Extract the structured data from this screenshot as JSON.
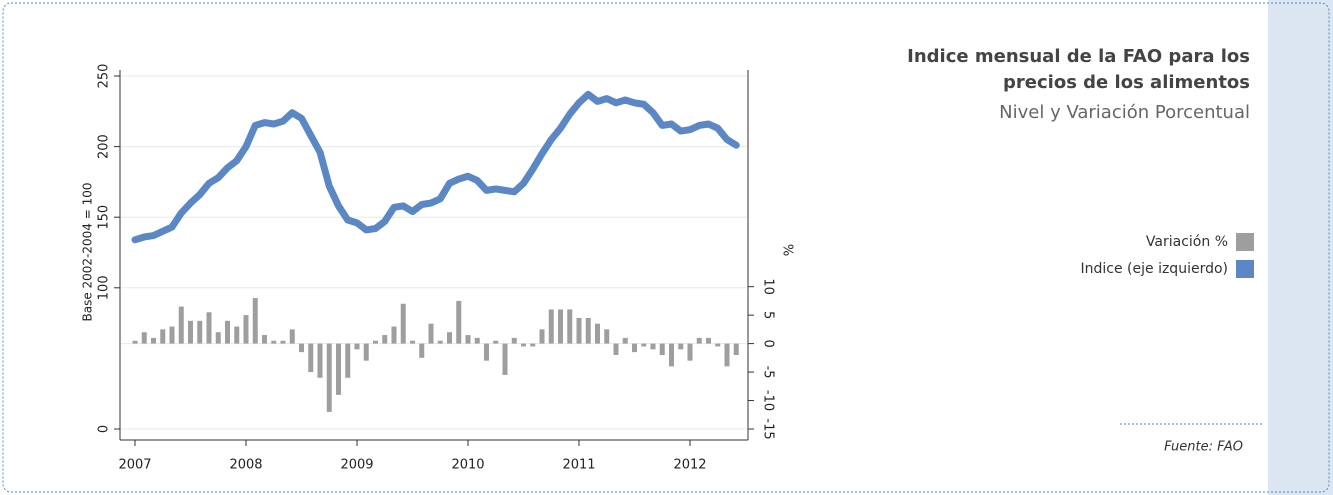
{
  "chart_data": {
    "type": "bar-line",
    "title": [
      "Indice mensual de la FAO para los",
      "precios de los alimentos"
    ],
    "subtitle": "Nivel y Variación Porcentual",
    "ylabel": "Base 2002-2004 = 100",
    "y2label": "%",
    "source": "Fuente: FAO",
    "categories": [
      "2007",
      null,
      null,
      null,
      null,
      null,
      null,
      null,
      null,
      null,
      null,
      null,
      "2008",
      null,
      null,
      null,
      null,
      null,
      null,
      null,
      null,
      null,
      null,
      null,
      "2009",
      null,
      null,
      null,
      null,
      null,
      null,
      null,
      null,
      null,
      null,
      null,
      "2010",
      null,
      null,
      null,
      null,
      null,
      null,
      null,
      null,
      null,
      null,
      null,
      "2011",
      null,
      null,
      null,
      null,
      null,
      null,
      null,
      null,
      null,
      null,
      null,
      "2012",
      null,
      null,
      null,
      null,
      null
    ],
    "series": [
      {
        "name": "Variación %",
        "type": "bar",
        "axis": "y2",
        "color": "#9e9e9e",
        "values": [
          0.5,
          2,
          1,
          2.5,
          3,
          6.5,
          4,
          4,
          5.5,
          2,
          4,
          3,
          5,
          8,
          1.5,
          0.5,
          0.5,
          2.5,
          -1.5,
          -5,
          -6,
          -12,
          -9,
          -6,
          -1,
          -3,
          0.5,
          1.5,
          3,
          7,
          0.5,
          -2.5,
          3.5,
          0.5,
          2,
          7.5,
          1.5,
          1,
          -3,
          0.5,
          -5.5,
          1,
          -0.5,
          -0.5,
          2.5,
          6,
          6,
          6,
          4.5,
          4.5,
          3.5,
          2.5,
          -2,
          1,
          -1.5,
          -0.5,
          -1,
          -2,
          -4,
          -1,
          -3,
          1,
          1,
          -0.5,
          -4,
          -2
        ]
      },
      {
        "name": "Indice (eje izquierdo)",
        "type": "line",
        "color": "#5b87c5",
        "values": [
          134,
          136,
          137,
          140,
          143,
          153,
          160,
          166,
          174,
          178,
          185,
          190,
          200,
          215,
          217,
          216,
          218,
          224,
          220,
          208,
          196,
          172,
          158,
          148,
          146,
          141,
          142,
          147,
          157,
          158,
          154,
          159,
          160,
          163,
          174,
          177,
          179,
          176,
          169,
          170,
          169,
          168,
          174,
          184,
          195,
          205,
          213,
          223,
          231,
          237,
          232,
          234,
          231,
          233,
          231,
          230,
          224,
          215,
          216,
          211,
          212,
          215,
          216,
          213,
          205,
          201
        ]
      }
    ],
    "ylim": [
      0,
      250
    ],
    "yticks": [
      0,
      100,
      150,
      200,
      250
    ],
    "y2lim": [
      -15,
      47
    ],
    "y2ticks": [
      10,
      5,
      0,
      -5,
      -10,
      -15
    ],
    "grid": true
  }
}
